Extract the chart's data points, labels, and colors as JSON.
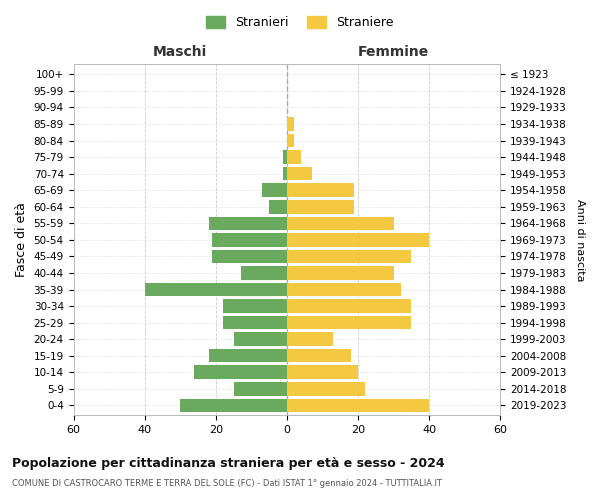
{
  "age_groups": [
    "100+",
    "95-99",
    "90-94",
    "85-89",
    "80-84",
    "75-79",
    "70-74",
    "65-69",
    "60-64",
    "55-59",
    "50-54",
    "45-49",
    "40-44",
    "35-39",
    "30-34",
    "25-29",
    "20-24",
    "15-19",
    "10-14",
    "5-9",
    "0-4"
  ],
  "birth_years": [
    "≤ 1923",
    "1924-1928",
    "1929-1933",
    "1934-1938",
    "1939-1943",
    "1944-1948",
    "1949-1953",
    "1954-1958",
    "1959-1963",
    "1964-1968",
    "1969-1973",
    "1974-1978",
    "1979-1983",
    "1984-1988",
    "1989-1993",
    "1994-1998",
    "1999-2003",
    "2004-2008",
    "2009-2013",
    "2014-2018",
    "2019-2023"
  ],
  "males": [
    0,
    0,
    0,
    0,
    0,
    1,
    1,
    7,
    5,
    22,
    21,
    21,
    13,
    40,
    18,
    18,
    15,
    22,
    26,
    15,
    30
  ],
  "females": [
    0,
    0,
    0,
    2,
    2,
    4,
    7,
    19,
    19,
    30,
    40,
    35,
    30,
    32,
    35,
    35,
    13,
    18,
    20,
    22,
    40
  ],
  "male_color": "#6aaa5e",
  "female_color": "#f5c842",
  "bar_height": 0.82,
  "xlim": [
    -60,
    60
  ],
  "xticks": [
    -60,
    -40,
    -20,
    0,
    20,
    40,
    60
  ],
  "xticklabels": [
    "60",
    "40",
    "20",
    "0",
    "20",
    "40",
    "60"
  ],
  "title_main": "Popolazione per cittadinanza straniera per età e sesso - 2024",
  "title_sub": "COMUNE DI CASTROCARO TERME E TERRA DEL SOLE (FC) - Dati ISTAT 1° gennaio 2024 - TUTTITALIA.IT",
  "label_maschi": "Maschi",
  "label_femmine": "Femmine",
  "ylabel_left": "Fasce di età",
  "ylabel_right": "Anni di nascita",
  "legend_stranieri": "Stranieri",
  "legend_straniere": "Straniere",
  "grid_color": "#cccccc",
  "bg_color": "#ffffff",
  "border_color": "#bbbbbb"
}
